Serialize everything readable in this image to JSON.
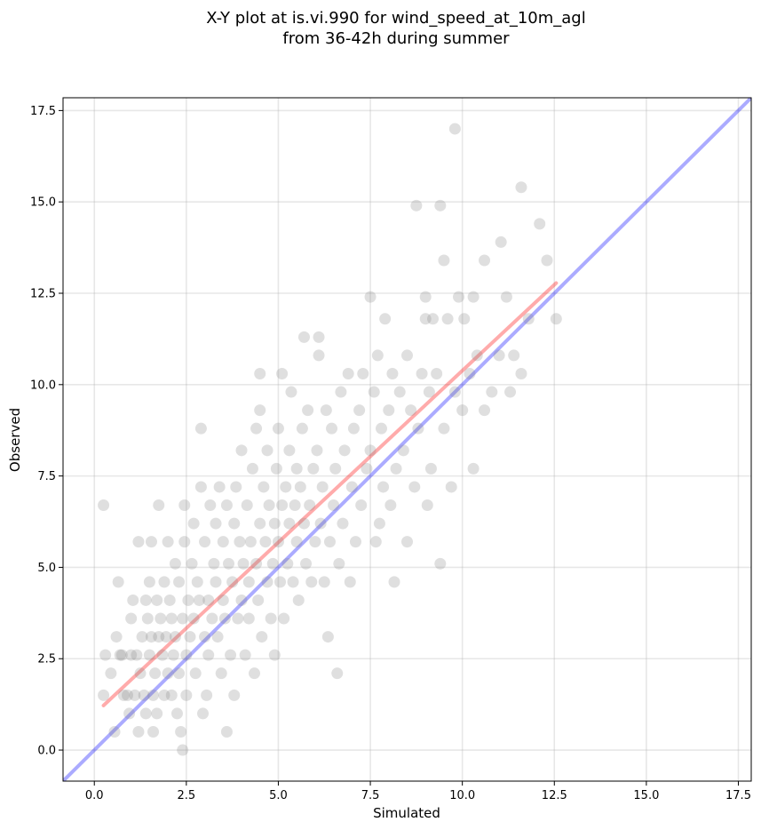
{
  "chart_data": {
    "type": "scatter",
    "title_lines": [
      "X-Y plot at is.vi.990 for wind_speed_at_10m_agl",
      "from 36-42h during summer"
    ],
    "xlabel": "Simulated",
    "ylabel": "Observed",
    "xlim": [
      -0.85,
      17.85
    ],
    "ylim": [
      -0.85,
      17.85
    ],
    "xticks": [
      0.0,
      2.5,
      5.0,
      7.5,
      10.0,
      12.5,
      15.0,
      17.5
    ],
    "yticks": [
      0.0,
      2.5,
      5.0,
      7.5,
      10.0,
      12.5,
      15.0,
      17.5
    ],
    "tick_labels": [
      "0.0",
      "2.5",
      "5.0",
      "7.5",
      "10.0",
      "12.5",
      "15.0",
      "17.5"
    ],
    "grid": true,
    "point_color": "#808080",
    "point_opacity": 0.25,
    "reference_line": {
      "x": [
        -0.85,
        17.85
      ],
      "y": [
        -0.85,
        17.85
      ],
      "color": "#0000ff",
      "opacity": 0.33
    },
    "fit_line": {
      "x": [
        0.25,
        12.55
      ],
      "y": [
        1.22,
        12.78
      ],
      "color": "#ff0000",
      "opacity": 0.33
    },
    "points": [
      [
        0.25,
        6.7
      ],
      [
        0.25,
        1.5
      ],
      [
        0.3,
        2.6
      ],
      [
        0.45,
        2.1
      ],
      [
        0.55,
        0.5
      ],
      [
        0.6,
        3.1
      ],
      [
        0.65,
        4.6
      ],
      [
        0.7,
        2.6
      ],
      [
        0.75,
        2.6
      ],
      [
        0.8,
        1.5
      ],
      [
        0.9,
        1.5
      ],
      [
        0.95,
        1.0
      ],
      [
        1.0,
        2.6
      ],
      [
        1.0,
        3.6
      ],
      [
        1.05,
        4.1
      ],
      [
        1.1,
        1.5
      ],
      [
        1.15,
        2.6
      ],
      [
        1.2,
        5.7
      ],
      [
        1.2,
        0.5
      ],
      [
        1.25,
        2.1
      ],
      [
        1.3,
        3.1
      ],
      [
        1.35,
        1.5
      ],
      [
        1.4,
        1.0
      ],
      [
        1.4,
        4.1
      ],
      [
        1.45,
        3.6
      ],
      [
        1.5,
        4.6
      ],
      [
        1.5,
        2.6
      ],
      [
        1.55,
        5.7
      ],
      [
        1.55,
        3.1
      ],
      [
        1.6,
        0.5
      ],
      [
        1.6,
        1.5
      ],
      [
        1.65,
        2.1
      ],
      [
        1.7,
        1.0
      ],
      [
        1.7,
        4.1
      ],
      [
        1.75,
        6.7
      ],
      [
        1.75,
        3.1
      ],
      [
        1.8,
        3.6
      ],
      [
        1.85,
        2.6
      ],
      [
        1.9,
        1.5
      ],
      [
        1.9,
        4.6
      ],
      [
        1.95,
        3.1
      ],
      [
        2.0,
        5.7
      ],
      [
        2.0,
        2.1
      ],
      [
        2.05,
        4.1
      ],
      [
        2.1,
        3.6
      ],
      [
        2.1,
        1.5
      ],
      [
        2.15,
        2.6
      ],
      [
        2.2,
        5.1
      ],
      [
        2.2,
        3.1
      ],
      [
        2.25,
        1.0
      ],
      [
        2.3,
        4.6
      ],
      [
        2.3,
        2.1
      ],
      [
        2.35,
        0.5
      ],
      [
        2.4,
        0.0
      ],
      [
        2.4,
        3.6
      ],
      [
        2.45,
        5.7
      ],
      [
        2.45,
        6.7
      ],
      [
        2.5,
        1.5
      ],
      [
        2.5,
        2.6
      ],
      [
        2.55,
        4.1
      ],
      [
        2.6,
        3.1
      ],
      [
        2.65,
        5.1
      ],
      [
        2.7,
        6.2
      ],
      [
        2.7,
        3.6
      ],
      [
        2.75,
        2.1
      ],
      [
        2.8,
        4.6
      ],
      [
        2.85,
        4.1
      ],
      [
        2.9,
        7.2
      ],
      [
        2.9,
        8.8
      ],
      [
        2.95,
        1.0
      ],
      [
        3.0,
        3.1
      ],
      [
        3.0,
        5.7
      ],
      [
        3.05,
        1.5
      ],
      [
        3.1,
        4.1
      ],
      [
        3.1,
        2.6
      ],
      [
        3.15,
        6.7
      ],
      [
        3.2,
        3.6
      ],
      [
        3.25,
        5.1
      ],
      [
        3.3,
        6.2
      ],
      [
        3.3,
        4.6
      ],
      [
        3.35,
        3.1
      ],
      [
        3.4,
        7.2
      ],
      [
        3.45,
        2.1
      ],
      [
        3.5,
        5.7
      ],
      [
        3.5,
        4.1
      ],
      [
        3.55,
        3.6
      ],
      [
        3.6,
        6.7
      ],
      [
        3.6,
        0.5
      ],
      [
        3.65,
        5.1
      ],
      [
        3.7,
        2.6
      ],
      [
        3.75,
        4.6
      ],
      [
        3.8,
        6.2
      ],
      [
        3.8,
        1.5
      ],
      [
        3.85,
        7.2
      ],
      [
        3.9,
        3.6
      ],
      [
        3.95,
        5.7
      ],
      [
        4.0,
        4.1
      ],
      [
        4.0,
        8.2
      ],
      [
        4.05,
        5.1
      ],
      [
        4.1,
        2.6
      ],
      [
        4.15,
        6.7
      ],
      [
        4.2,
        3.6
      ],
      [
        4.2,
        4.6
      ],
      [
        4.25,
        5.7
      ],
      [
        4.3,
        7.7
      ],
      [
        4.35,
        2.1
      ],
      [
        4.4,
        5.1
      ],
      [
        4.4,
        8.8
      ],
      [
        4.45,
        4.1
      ],
      [
        4.5,
        6.2
      ],
      [
        4.5,
        10.3
      ],
      [
        4.5,
        9.3
      ],
      [
        4.55,
        3.1
      ],
      [
        4.6,
        7.2
      ],
      [
        4.65,
        5.7
      ],
      [
        4.7,
        4.6
      ],
      [
        4.7,
        8.2
      ],
      [
        4.75,
        6.7
      ],
      [
        4.8,
        3.6
      ],
      [
        4.85,
        5.1
      ],
      [
        4.9,
        6.2
      ],
      [
        4.9,
        2.6
      ],
      [
        4.95,
        7.7
      ],
      [
        5.0,
        5.7
      ],
      [
        5.0,
        8.8
      ],
      [
        5.05,
        4.6
      ],
      [
        5.1,
        6.7
      ],
      [
        5.1,
        10.3
      ],
      [
        5.15,
        3.6
      ],
      [
        5.2,
        7.2
      ],
      [
        5.25,
        5.1
      ],
      [
        5.3,
        6.2
      ],
      [
        5.3,
        8.2
      ],
      [
        5.35,
        9.8
      ],
      [
        5.4,
        4.6
      ],
      [
        5.45,
        6.7
      ],
      [
        5.5,
        5.7
      ],
      [
        5.5,
        7.7
      ],
      [
        5.55,
        4.1
      ],
      [
        5.6,
        7.2
      ],
      [
        5.65,
        8.8
      ],
      [
        5.7,
        11.3
      ],
      [
        5.7,
        6.2
      ],
      [
        5.75,
        5.1
      ],
      [
        5.8,
        9.3
      ],
      [
        5.85,
        6.7
      ],
      [
        5.9,
        4.6
      ],
      [
        5.95,
        7.7
      ],
      [
        6.0,
        5.7
      ],
      [
        6.05,
        8.2
      ],
      [
        6.1,
        11.3
      ],
      [
        6.1,
        10.8
      ],
      [
        6.15,
        6.2
      ],
      [
        6.2,
        7.2
      ],
      [
        6.25,
        4.6
      ],
      [
        6.3,
        9.3
      ],
      [
        6.35,
        3.1
      ],
      [
        6.4,
        5.7
      ],
      [
        6.45,
        8.8
      ],
      [
        6.5,
        6.7
      ],
      [
        6.55,
        7.7
      ],
      [
        6.6,
        2.1
      ],
      [
        6.65,
        5.1
      ],
      [
        6.7,
        9.8
      ],
      [
        6.75,
        6.2
      ],
      [
        6.8,
        8.2
      ],
      [
        6.9,
        10.3
      ],
      [
        6.95,
        4.6
      ],
      [
        7.0,
        7.2
      ],
      [
        7.05,
        8.8
      ],
      [
        7.1,
        5.7
      ],
      [
        7.2,
        9.3
      ],
      [
        7.25,
        6.7
      ],
      [
        7.3,
        10.3
      ],
      [
        7.4,
        7.7
      ],
      [
        7.5,
        12.4
      ],
      [
        7.5,
        8.2
      ],
      [
        7.6,
        9.8
      ],
      [
        7.65,
        5.7
      ],
      [
        7.7,
        10.8
      ],
      [
        7.75,
        6.2
      ],
      [
        7.8,
        8.8
      ],
      [
        7.85,
        7.2
      ],
      [
        7.9,
        11.8
      ],
      [
        8.0,
        9.3
      ],
      [
        8.05,
        6.7
      ],
      [
        8.1,
        10.3
      ],
      [
        8.15,
        4.6
      ],
      [
        8.2,
        7.7
      ],
      [
        8.3,
        9.8
      ],
      [
        8.4,
        8.2
      ],
      [
        8.5,
        5.7
      ],
      [
        8.5,
        10.8
      ],
      [
        8.6,
        9.3
      ],
      [
        8.7,
        7.2
      ],
      [
        8.75,
        14.9
      ],
      [
        8.8,
        8.8
      ],
      [
        8.9,
        10.3
      ],
      [
        9.0,
        11.8
      ],
      [
        9.0,
        12.4
      ],
      [
        9.05,
        6.7
      ],
      [
        9.1,
        9.8
      ],
      [
        9.15,
        7.7
      ],
      [
        9.2,
        11.8
      ],
      [
        9.3,
        10.3
      ],
      [
        9.4,
        14.9
      ],
      [
        9.4,
        5.1
      ],
      [
        9.5,
        13.4
      ],
      [
        9.5,
        8.8
      ],
      [
        9.6,
        11.8
      ],
      [
        9.7,
        7.2
      ],
      [
        9.8,
        17.0
      ],
      [
        9.8,
        9.8
      ],
      [
        9.9,
        12.4
      ],
      [
        10.0,
        9.3
      ],
      [
        10.05,
        11.8
      ],
      [
        10.2,
        10.3
      ],
      [
        10.3,
        12.4
      ],
      [
        10.3,
        7.7
      ],
      [
        10.4,
        10.8
      ],
      [
        10.6,
        13.4
      ],
      [
        10.6,
        9.3
      ],
      [
        10.8,
        9.8
      ],
      [
        11.0,
        10.8
      ],
      [
        11.05,
        13.9
      ],
      [
        11.2,
        12.4
      ],
      [
        11.3,
        9.8
      ],
      [
        11.4,
        10.8
      ],
      [
        11.6,
        15.4
      ],
      [
        11.6,
        10.3
      ],
      [
        11.8,
        11.8
      ],
      [
        12.1,
        14.4
      ],
      [
        12.3,
        13.4
      ],
      [
        12.55,
        11.8
      ]
    ]
  }
}
